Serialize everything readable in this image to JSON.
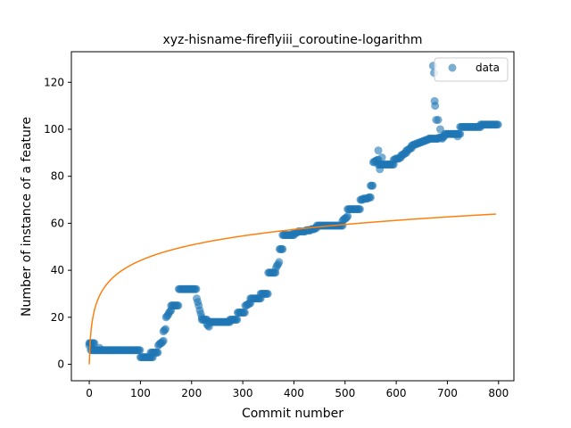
{
  "chart_data": {
    "type": "scatter",
    "title": "xyz-hisname-fireflyiii_coroutine-logarithm",
    "xlabel": "Commit number",
    "ylabel": "Number of instance of a feature",
    "xlim": [
      -35,
      830
    ],
    "ylim": [
      -7,
      133
    ],
    "xticks": [
      0,
      100,
      200,
      300,
      400,
      500,
      600,
      700,
      800
    ],
    "yticks": [
      0,
      20,
      40,
      60,
      80,
      100,
      120
    ],
    "legend": {
      "label": "data",
      "position": "top-right"
    },
    "colors": {
      "scatter": "#1f77b4",
      "fit": "#ff7f0e"
    },
    "scatter_segments": [
      [
        0,
        10,
        9,
        9
      ],
      [
        3,
        100,
        6,
        6
      ],
      [
        100,
        125,
        3,
        3
      ],
      [
        120,
        135,
        5,
        5
      ],
      [
        135,
        145,
        8,
        10
      ],
      [
        145,
        150,
        14,
        15
      ],
      [
        150,
        160,
        20,
        23
      ],
      [
        160,
        175,
        25,
        25
      ],
      [
        175,
        210,
        32,
        32
      ],
      [
        210,
        220,
        28,
        20
      ],
      [
        220,
        230,
        19,
        19
      ],
      [
        230,
        235,
        17,
        16
      ],
      [
        235,
        275,
        18,
        18
      ],
      [
        275,
        290,
        19,
        19
      ],
      [
        290,
        305,
        22,
        22
      ],
      [
        305,
        315,
        25,
        26
      ],
      [
        315,
        335,
        28,
        28
      ],
      [
        335,
        350,
        30,
        30
      ],
      [
        350,
        365,
        39,
        39
      ],
      [
        365,
        372,
        41,
        44
      ],
      [
        372,
        378,
        49,
        49
      ],
      [
        378,
        400,
        55,
        55
      ],
      [
        400,
        430,
        56,
        57
      ],
      [
        430,
        445,
        57,
        58
      ],
      [
        445,
        495,
        59,
        59
      ],
      [
        495,
        505,
        61,
        63
      ],
      [
        505,
        530,
        66,
        66
      ],
      [
        530,
        550,
        70,
        71
      ],
      [
        550,
        555,
        76,
        76
      ],
      [
        555,
        565,
        86,
        87
      ],
      [
        565,
        595,
        85,
        85
      ],
      [
        595,
        610,
        87,
        88
      ],
      [
        610,
        620,
        89,
        90
      ],
      [
        620,
        630,
        91,
        92
      ],
      [
        630,
        665,
        93,
        96
      ],
      [
        665,
        680,
        96,
        96
      ],
      [
        680,
        695,
        96,
        97
      ],
      [
        695,
        725,
        98,
        98
      ],
      [
        725,
        765,
        101,
        101
      ],
      [
        765,
        800,
        102,
        102
      ]
    ],
    "scatter_outliers": [
      [
        0,
        8
      ],
      [
        2,
        9
      ],
      [
        20,
        7
      ],
      [
        565,
        91
      ],
      [
        568,
        83
      ],
      [
        572,
        88
      ],
      [
        672,
        127
      ],
      [
        674,
        124
      ],
      [
        675,
        112
      ],
      [
        676,
        110
      ],
      [
        678,
        104
      ],
      [
        682,
        104
      ],
      [
        686,
        100
      ],
      [
        690,
        96
      ],
      [
        720,
        97
      ]
    ],
    "fit_curve": {
      "formula": "y = 9.57 * ln(x + 1)",
      "a": 9.57,
      "x_range": [
        0,
        795
      ]
    }
  }
}
